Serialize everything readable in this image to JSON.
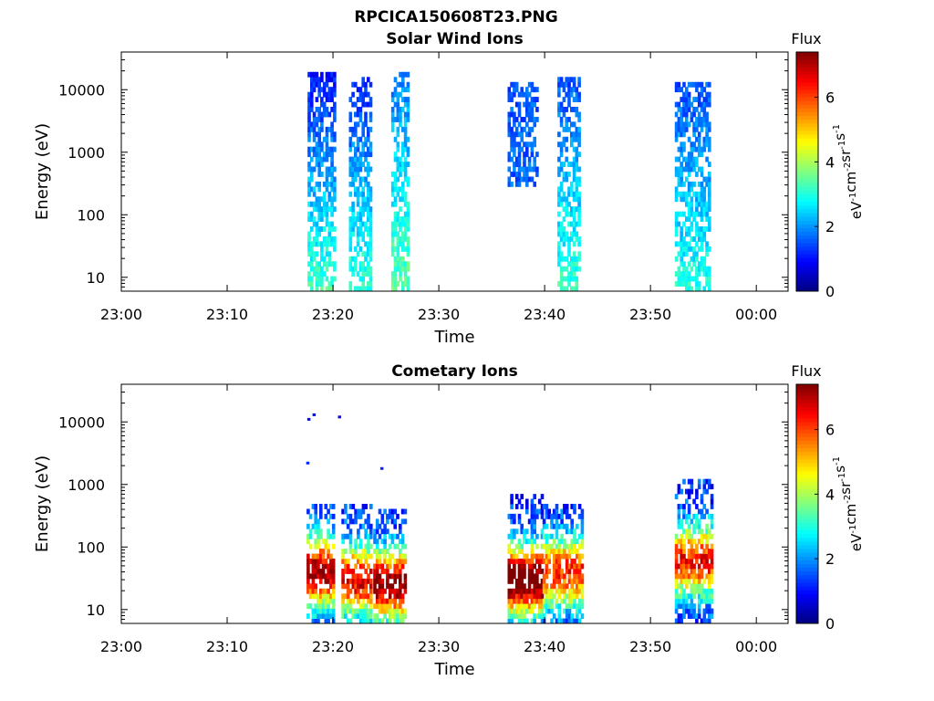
{
  "figure": {
    "title": "RPCICA150608T23.PNG"
  },
  "chart_data": [
    {
      "type": "heatmap",
      "title": "Solar Wind Ions",
      "xlabel": "Time",
      "ylabel": "Energy (eV)",
      "x_ticks": [
        "23:00",
        "23:10",
        "23:20",
        "23:30",
        "23:40",
        "23:50",
        "00:00"
      ],
      "x_range_minutes": [
        0,
        63
      ],
      "y_scale": "log",
      "y_ticks": [
        10,
        100,
        1000,
        10000
      ],
      "ylim": [
        6,
        40000
      ],
      "colorbar": {
        "title": "Flux",
        "label": "eV-1cm-2sr-1s-1",
        "ticks": [
          0,
          2,
          4,
          6
        ],
        "range": [
          0,
          7.4
        ],
        "colormap": "jet"
      },
      "bursts": [
        {
          "t_start": 17.6,
          "t_end": 20.2,
          "e_min": 6,
          "e_max": 20000,
          "flux_low_e": 3.3,
          "flux_high_e": 1.0
        },
        {
          "t_start": 21.5,
          "t_end": 23.6,
          "e_min": 6,
          "e_max": 15000,
          "flux_low_e": 3.2,
          "flux_high_e": 1.2
        },
        {
          "t_start": 25.5,
          "t_end": 27.0,
          "e_min": 6,
          "e_max": 18000,
          "flux_low_e": 3.5,
          "flux_high_e": 1.8
        },
        {
          "t_start": 36.5,
          "t_end": 39.2,
          "e_min": 300,
          "e_max": 14000,
          "flux_low_e": 1.8,
          "flux_high_e": 1.5
        },
        {
          "t_start": 41.2,
          "t_end": 43.2,
          "e_min": 6,
          "e_max": 15000,
          "flux_low_e": 3.2,
          "flux_high_e": 1.5
        },
        {
          "t_start": 52.3,
          "t_end": 55.5,
          "e_min": 6,
          "e_max": 13000,
          "flux_low_e": 3.0,
          "flux_high_e": 1.5
        }
      ]
    },
    {
      "type": "heatmap",
      "title": "Cometary Ions",
      "xlabel": "Time",
      "ylabel": "Energy (eV)",
      "x_ticks": [
        "23:00",
        "23:10",
        "23:20",
        "23:30",
        "23:40",
        "23:50",
        "00:00"
      ],
      "x_range_minutes": [
        0,
        63
      ],
      "y_scale": "log",
      "y_ticks": [
        10,
        100,
        1000,
        10000
      ],
      "ylim": [
        6,
        40000
      ],
      "colorbar": {
        "title": "Flux",
        "label": "eV-1cm-2sr-1s-1",
        "ticks": [
          0,
          2,
          4,
          6
        ],
        "range": [
          0,
          7.4
        ],
        "colormap": "jet"
      },
      "bursts": [
        {
          "t_start": 17.5,
          "t_end": 20.0,
          "e_min": 6,
          "e_max": 450,
          "flux_peak": 6.0,
          "peak_e": 40
        },
        {
          "t_start": 20.8,
          "t_end": 23.5,
          "e_min": 6,
          "e_max": 500,
          "flux_peak": 5.5,
          "peak_e": 30
        },
        {
          "t_start": 23.8,
          "t_end": 26.8,
          "e_min": 6,
          "e_max": 400,
          "flux_peak": 6.2,
          "peak_e": 25
        },
        {
          "t_start": 36.5,
          "t_end": 39.8,
          "e_min": 6,
          "e_max": 700,
          "flux_peak": 6.8,
          "peak_e": 30
        },
        {
          "t_start": 39.8,
          "t_end": 43.5,
          "e_min": 6,
          "e_max": 450,
          "flux_peak": 5.0,
          "peak_e": 40
        },
        {
          "t_start": 52.3,
          "t_end": 55.8,
          "e_min": 6,
          "e_max": 1200,
          "flux_peak": 5.2,
          "peak_e": 60
        }
      ],
      "sparse_points": [
        {
          "t": 17.7,
          "e": 11000,
          "flux": 1.0
        },
        {
          "t": 18.2,
          "e": 13000,
          "flux": 1.0
        },
        {
          "t": 20.6,
          "e": 12000,
          "flux": 1.0
        },
        {
          "t": 17.6,
          "e": 2200,
          "flux": 1.2
        },
        {
          "t": 24.6,
          "e": 1800,
          "flux": 1.2
        }
      ]
    }
  ]
}
